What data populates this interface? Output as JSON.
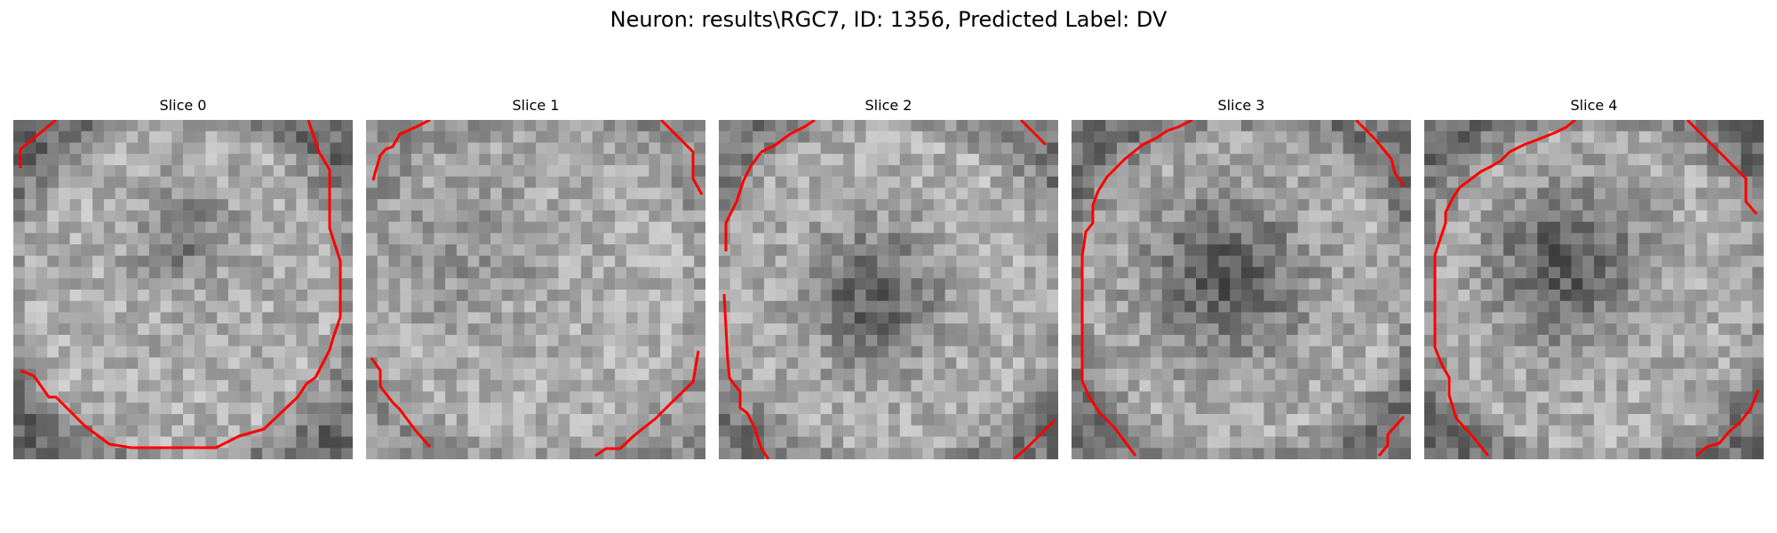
{
  "figure": {
    "suptitle": "Neuron: results\\RGC7, ID: 1356, Predicted Label: DV"
  },
  "colors": {
    "contour": "#ff0000",
    "background": "#ffffff"
  },
  "panels": [
    {
      "title": "Slice 0",
      "dark_blob": "center-upper"
    },
    {
      "title": "Slice 1",
      "dark_blob": "left-center"
    },
    {
      "title": "Slice 2",
      "dark_blob": "center"
    },
    {
      "title": "Slice 3",
      "dark_blob": "center"
    },
    {
      "title": "Slice 4",
      "dark_blob": "upper-center"
    }
  ]
}
